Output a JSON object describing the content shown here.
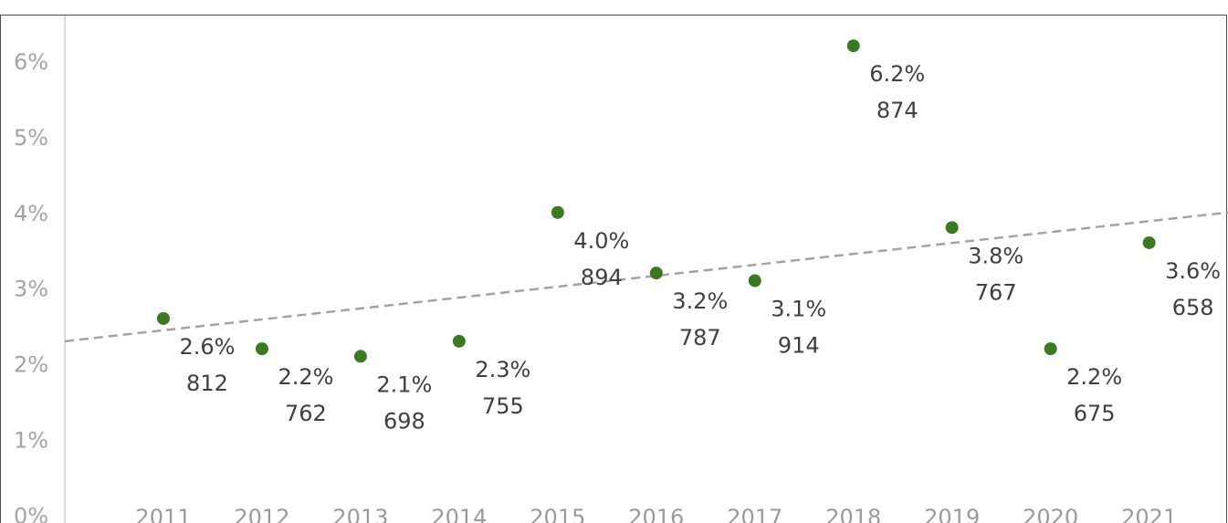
{
  "chart_data": {
    "type": "scatter",
    "title": "",
    "xlabel": "",
    "ylabel": "",
    "x": [
      2011,
      2012,
      2013,
      2014,
      2015,
      2016,
      2017,
      2018,
      2019,
      2020,
      2021
    ],
    "series": [
      {
        "values": [
          2.6,
          2.2,
          2.1,
          2.3,
          4.0,
          3.2,
          3.1,
          6.2,
          3.8,
          2.2,
          3.6
        ],
        "labels": [
          "2.6%",
          "2.2%",
          "2.1%",
          "2.3%",
          "4.0%",
          "3.2%",
          "3.1%",
          "6.2%",
          "3.8%",
          "2.2%",
          "3.6%"
        ],
        "counts": [
          "812",
          "762",
          "698",
          "755",
          "894",
          "787",
          "914",
          "874",
          "767",
          "675",
          "658"
        ]
      }
    ],
    "trend_line": {
      "style": "dashed",
      "start": 2.3,
      "end": 4.0
    },
    "y_ticks": [
      "0%",
      "1%",
      "2%",
      "3%",
      "4%",
      "5%",
      "6%"
    ],
    "x_ticks": [
      "2011",
      "2012",
      "2013",
      "2014",
      "2015",
      "2016",
      "2017",
      "2018",
      "2019",
      "2020",
      "2021"
    ],
    "ylim": [
      -0.1,
      6.6
    ],
    "grid": false,
    "colors": {
      "points": "#3a7a23",
      "trend": "#a3a3a3",
      "axis": "#d9d9d9"
    }
  }
}
